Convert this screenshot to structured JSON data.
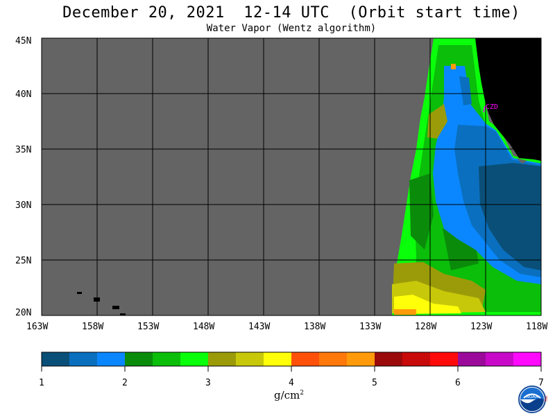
{
  "header": {
    "title": "December 20, 2021  12-14 UTC  (Orbit start time)",
    "subtitle": "Water Vapor (Wentz algorithm)"
  },
  "map": {
    "lat_labels": [
      "45N",
      "40N",
      "35N",
      "30N",
      "25N",
      "20N"
    ],
    "lon_labels": [
      "163W",
      "158W",
      "153W",
      "148W",
      "143W",
      "138W",
      "133W",
      "128W",
      "123W",
      "118W"
    ],
    "lat_range": [
      20,
      45
    ],
    "lon_range": [
      -163,
      -118
    ],
    "grid": true,
    "station_label": "CZD",
    "colors": {
      "no_data": "#646464",
      "land": "#000000",
      "station": "#ff00ff"
    }
  },
  "colorbar": {
    "tick_labels": [
      "1",
      "2",
      "3",
      "4",
      "5",
      "6",
      "7"
    ],
    "units": "g/cm",
    "units_exponent": "2",
    "colors": [
      "#0a4f78",
      "#0a6fbe",
      "#0a87ff",
      "#0a8c0a",
      "#0abe0a",
      "#0aff0a",
      "#9b9b0a",
      "#c8c80a",
      "#ffff0a",
      "#ff500a",
      "#ff780a",
      "#ff9b0a",
      "#9b0a0a",
      "#c80a0a",
      "#ff0a0a",
      "#9b0a9b",
      "#c80ac8",
      "#ff0aff"
    ]
  },
  "logo": {
    "name": "NOAA",
    "side_text": "PSL"
  }
}
